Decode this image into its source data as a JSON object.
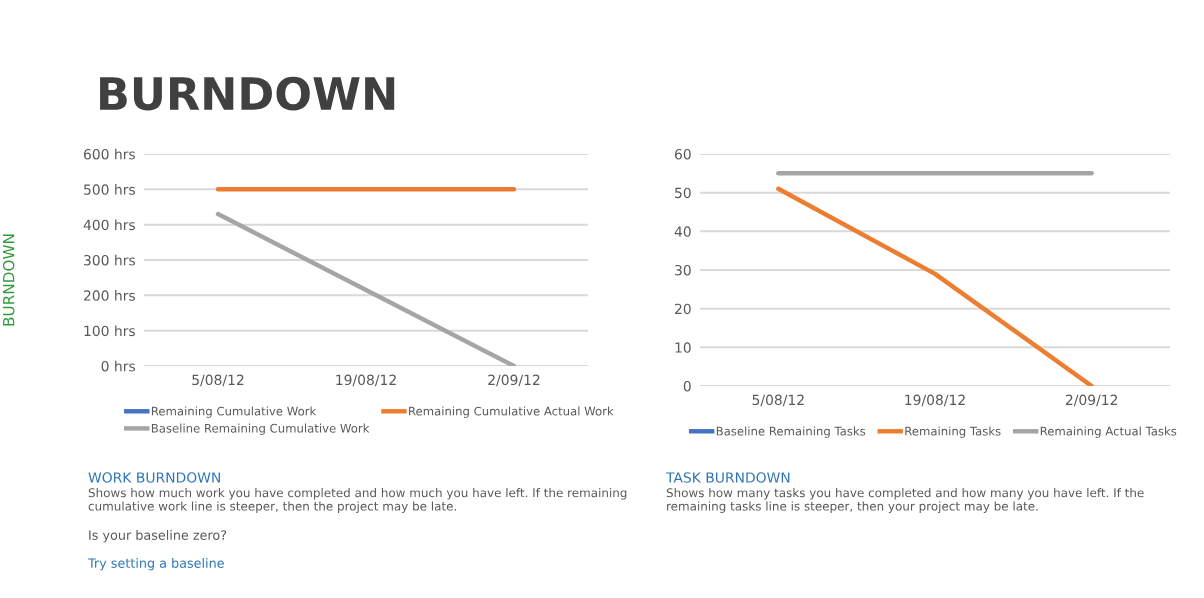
{
  "chart_data": [
    {
      "type": "line",
      "categories": [
        "5/08/12",
        "19/08/12",
        "2/09/12"
      ],
      "series": [
        {
          "name": "Remaining Cumulative Work",
          "color": "#4472c4",
          "values": [
            null,
            null,
            null
          ]
        },
        {
          "name": "Remaining Cumulative Actual Work",
          "color": "#ed7d31",
          "values": [
            500,
            500,
            500
          ]
        },
        {
          "name": "Baseline Remaining Cumulative Work",
          "color": "#a5a5a5",
          "values": [
            430,
            215,
            0
          ]
        }
      ],
      "ylim": [
        0,
        600
      ],
      "yticks": [
        {
          "value": 0,
          "label": "0 hrs"
        },
        {
          "value": 100,
          "label": "100 hrs"
        },
        {
          "value": 200,
          "label": "200 hrs"
        },
        {
          "value": 300,
          "label": "300 hrs"
        },
        {
          "value": 400,
          "label": "400 hrs"
        },
        {
          "value": 500,
          "label": "500 hrs"
        },
        {
          "value": 600,
          "label": "600 hrs"
        }
      ],
      "grid": "y",
      "legend": "bottom",
      "annotations": [
        "BURNDOWN",
        "BURNDOWN",
        "WORK BURNDOWN",
        "Shows how much work you have completed and how much you have left. If the remaining cumulative work line is steeper, then the project may be late.",
        "Is your baseline zero?",
        "Try setting a baseline"
      ]
    },
    {
      "type": "line",
      "categories": [
        "5/08/12",
        "19/08/12",
        "2/09/12"
      ],
      "series": [
        {
          "name": "Baseline Remaining Tasks",
          "color": "#4472c4",
          "values": [
            null,
            null,
            null
          ]
        },
        {
          "name": "Remaining Tasks",
          "color": "#ed7d31",
          "values": [
            51,
            29,
            0
          ]
        },
        {
          "name": "Remaining Actual Tasks",
          "color": "#a5a5a5",
          "values": [
            55,
            55,
            55
          ]
        }
      ],
      "ylim": [
        0,
        60
      ],
      "yticks": [
        0,
        10,
        20,
        30,
        40,
        50,
        60
      ],
      "grid": "y",
      "legend": "bottom",
      "annotations": [
        "TASK BURNDOWN",
        "Shows how many tasks you have completed and how many you have left. If the remaining tasks line is steeper, then your project may be late."
      ]
    }
  ]
}
